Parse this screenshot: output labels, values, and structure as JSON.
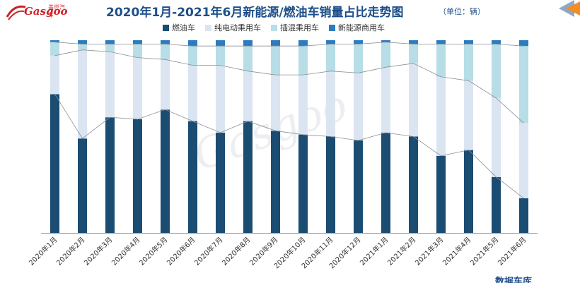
{
  "header": {
    "title": "2020年1月-2021年6月新能源/燃油车销量占比走势图",
    "unit": "（单位：辆）",
    "logo_text": "Gasgoo",
    "logo_cn": "盖世汽车",
    "watermark": "Gasgoo",
    "footer_mark": "数据车库"
  },
  "colors": {
    "fuel": "#1b4c72",
    "bev": "#dbe5f2",
    "phev": "#b7dde6",
    "commercial": "#2b7bbf",
    "accent_orange": "#f28c28"
  },
  "chart_data": {
    "type": "bar",
    "stacked": true,
    "categories": [
      "2020年1月",
      "2020年2月",
      "2020年3月",
      "2020年4月",
      "2020年5月",
      "2020年6月",
      "2020年7月",
      "2020年8月",
      "2020年9月",
      "2020年10月",
      "2020年11月",
      "2020年12月",
      "2021年1月",
      "2021年2月",
      "2021年3月",
      "2021年4月",
      "2021年5月",
      "2021年6月"
    ],
    "series": [
      {
        "name": "燃油车",
        "key": "fuel",
        "values": [
          72,
          49,
          60,
          59,
          64,
          58,
          52,
          58,
          53,
          51,
          50,
          48,
          52,
          50,
          40,
          43,
          29,
          18
        ]
      },
      {
        "name": "纯电动乘用车",
        "key": "bev",
        "values": [
          20,
          46,
          34,
          32,
          26,
          29,
          35,
          26,
          29,
          31,
          34,
          35,
          34,
          38,
          41,
          36,
          41,
          39
        ]
      },
      {
        "name": "插混乘用车",
        "key": "phev",
        "values": [
          7,
          3,
          4,
          7,
          8,
          10,
          10,
          13,
          15,
          15,
          14,
          15,
          13,
          10,
          17,
          19,
          28,
          40
        ]
      },
      {
        "name": "新能源商用车",
        "key": "commercial",
        "values": [
          1,
          2,
          2,
          2,
          2,
          3,
          3,
          3,
          3,
          3,
          2,
          2,
          1,
          2,
          2,
          2,
          2,
          3
        ]
      }
    ],
    "ylim": [
      0,
      100
    ],
    "grid": false,
    "legend_position": "top"
  }
}
